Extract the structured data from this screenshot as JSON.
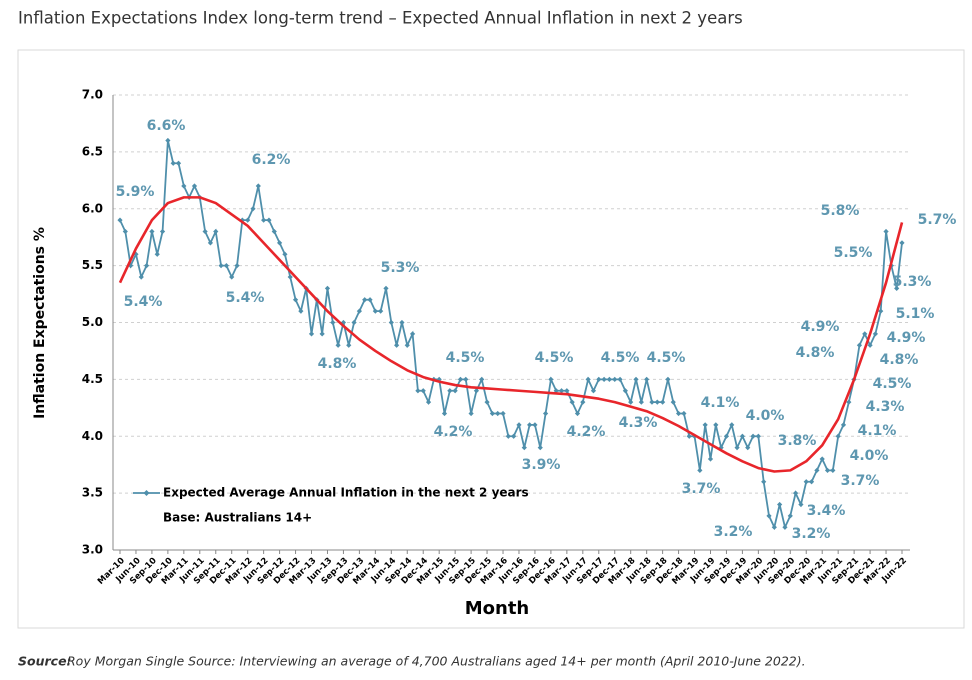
{
  "chart_data": {
    "type": "line",
    "title": "Inflation Expectations Index long-term trend – Expected Annual Inflation in next 2 years",
    "ylabel": "Inflation Expectations %",
    "xlabel": "Month",
    "base_note": "Base: Australians 14+",
    "source_label": "Source:",
    "source": "Roy Morgan Single Source: Interviewing an average of 4,700 Australians aged 14+ per month (April 2010-June 2022).",
    "ylim": [
      3,
      7
    ],
    "yticks": [
      {
        "value": 3,
        "label": "3.0"
      },
      3.5,
      {
        "value": 4,
        "label": "4.0"
      },
      4.5,
      {
        "value": 5,
        "label": "5.0"
      },
      5.5,
      {
        "value": 6,
        "label": "6.0"
      },
      6.5,
      {
        "value": 7,
        "label": "7.0"
      }
    ],
    "grid": true,
    "legend": "lower-left",
    "categories": [
      "Mar-10",
      null,
      null,
      "Jun-10",
      null,
      null,
      "Sep-10",
      null,
      null,
      "Dec-10",
      null,
      null,
      "Mar-11",
      null,
      null,
      "Jun-11",
      null,
      null,
      "Sep-11",
      null,
      null,
      "Dec-11",
      null,
      null,
      "Mar-12",
      null,
      null,
      "Jun-12",
      null,
      null,
      "Sep-12",
      null,
      null,
      "Dec-12",
      null,
      null,
      "Mar-13",
      null,
      null,
      "Jun-13",
      null,
      null,
      "Sep-13",
      null,
      null,
      "Dec-13",
      null,
      null,
      "Mar-14",
      null,
      null,
      "Jun-14",
      null,
      null,
      "Sep-14",
      null,
      null,
      "Dec-14",
      null,
      null,
      "Mar-15",
      null,
      null,
      "Jun-15",
      null,
      null,
      "Sep-15",
      null,
      null,
      "Dec-15",
      null,
      null,
      "Mar-16",
      null,
      null,
      "Jun-16",
      null,
      null,
      "Sep-16",
      null,
      null,
      "Dec-16",
      null,
      null,
      "Mar-17",
      null,
      null,
      "Jun-17",
      null,
      null,
      "Sep-17",
      null,
      null,
      "Dec-17",
      null,
      null,
      "Mar-18",
      null,
      null,
      "Jun-18",
      null,
      null,
      "Sep-18",
      null,
      null,
      "Dec-18",
      null,
      null,
      "Mar-19",
      null,
      null,
      "Jun-19",
      null,
      null,
      "Sep-19",
      null,
      null,
      "Dec-19",
      null,
      null,
      "Mar-20",
      null,
      null,
      "Jun-20",
      null,
      null,
      "Sep-20",
      null,
      null,
      "Dec-20",
      null,
      null,
      "Mar-21",
      null,
      null,
      "Jun-21",
      null,
      null,
      "Sep-21",
      null,
      null,
      "Dec-21",
      null,
      null,
      "Mar-22",
      null,
      null,
      "Jun-22"
    ],
    "series": [
      {
        "name": "Expected Average Annual Inflation in the next 2 years",
        "color": "#4f8fab",
        "values": [
          5.9,
          5.8,
          5.5,
          5.6,
          5.4,
          5.5,
          5.8,
          5.6,
          5.8,
          6.6,
          6.4,
          6.4,
          6.2,
          6.1,
          6.2,
          6.1,
          5.8,
          5.7,
          5.8,
          5.5,
          5.5,
          5.4,
          5.5,
          5.9,
          5.9,
          6.0,
          6.2,
          5.9,
          5.9,
          5.8,
          5.7,
          5.6,
          5.4,
          5.2,
          5.1,
          5.3,
          4.9,
          5.2,
          4.9,
          5.3,
          5.0,
          4.8,
          5.0,
          4.8,
          5.0,
          5.1,
          5.2,
          5.2,
          5.1,
          5.1,
          5.3,
          5.0,
          4.8,
          5.0,
          4.8,
          4.9,
          4.4,
          4.4,
          4.3,
          4.5,
          4.5,
          4.2,
          4.4,
          4.4,
          4.5,
          4.5,
          4.2,
          4.4,
          4.5,
          4.3,
          4.2,
          4.2,
          4.2,
          4.0,
          4.0,
          4.1,
          3.9,
          4.1,
          4.1,
          3.9,
          4.2,
          4.5,
          4.4,
          4.4,
          4.4,
          4.3,
          4.2,
          4.3,
          4.5,
          4.4,
          4.5,
          4.5,
          4.5,
          4.5,
          4.5,
          4.4,
          4.3,
          4.5,
          4.3,
          4.5,
          4.3,
          4.3,
          4.3,
          4.5,
          4.3,
          4.2,
          4.2,
          4.0,
          4.0,
          3.7,
          4.1,
          3.8,
          4.1,
          3.9,
          4.0,
          4.1,
          3.9,
          4.0,
          3.9,
          4.0,
          4.0,
          3.6,
          3.3,
          3.2,
          3.4,
          3.2,
          3.3,
          3.5,
          3.4,
          3.6,
          3.6,
          3.7,
          3.8,
          3.7,
          3.7,
          4.0,
          4.1,
          4.3,
          4.5,
          4.8,
          4.9,
          4.8,
          4.9,
          5.1,
          5.8,
          5.5,
          5.3,
          5.7
        ],
        "value_labels": [
          "5.9%",
          null,
          null,
          null,
          "5.4%",
          null,
          null,
          null,
          null,
          "6.6%",
          null,
          null,
          null,
          null,
          null,
          null,
          null,
          null,
          null,
          null,
          null,
          "5.4%",
          null,
          null,
          null,
          null,
          "6.2%",
          null,
          null,
          null,
          null,
          null,
          null,
          null,
          null,
          null,
          null,
          null,
          null,
          null,
          null,
          "4.8%",
          null,
          null,
          null,
          null,
          null,
          null,
          null,
          null,
          "5.3%",
          null,
          null,
          null,
          null,
          null,
          null,
          null,
          null,
          null,
          null,
          "4.2%",
          null,
          null,
          null,
          "4.5%",
          null,
          null,
          null,
          null,
          null,
          null,
          null,
          null,
          null,
          null,
          null,
          null,
          null,
          "3.9%",
          null,
          "4.5%",
          null,
          null,
          null,
          null,
          "4.2%",
          null,
          null,
          null,
          null,
          null,
          null,
          null,
          "4.5%",
          null,
          null,
          null,
          "4.3%",
          null,
          null,
          null,
          null,
          "4.5%",
          null,
          null,
          null,
          null,
          null,
          "3.7%",
          "4.1%",
          null,
          null,
          null,
          null,
          null,
          null,
          null,
          null,
          "4.0%",
          null,
          null,
          null,
          "3.2%",
          "3.4%",
          "3.2%",
          null,
          null,
          null,
          null,
          null,
          null,
          "3.8%",
          "3.7%",
          null,
          "4.0%",
          "4.1%",
          "4.3%",
          "4.5%",
          "4.8%",
          "4.9%",
          "4.8%",
          "4.9%",
          "5.1%",
          "5.8%",
          "5.5%",
          "5.3%",
          "5.7%"
        ]
      }
    ],
    "trend": {
      "color": "#e8262b",
      "values": [
        5.35,
        5.65,
        5.9,
        6.05,
        6.1,
        6.1,
        6.05,
        5.95,
        5.85,
        5.7,
        5.55,
        5.4,
        5.25,
        5.1,
        4.97,
        4.85,
        4.75,
        4.66,
        4.58,
        4.52,
        4.48,
        4.45,
        4.43,
        4.42,
        4.41,
        4.4,
        4.39,
        4.38,
        4.37,
        4.35,
        4.33,
        4.3,
        4.26,
        4.22,
        4.16,
        4.09,
        4.01,
        3.93,
        3.85,
        3.78,
        3.72,
        3.69,
        3.7,
        3.78,
        3.92,
        4.15,
        4.5,
        4.9,
        5.35,
        5.88
      ]
    }
  }
}
